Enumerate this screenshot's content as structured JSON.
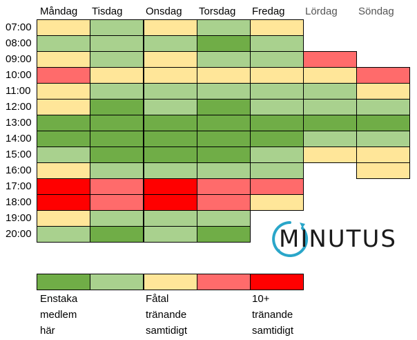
{
  "colors": {
    "c1": "#70ad47",
    "c2": "#a9d18e",
    "c3": "#ffe699",
    "c4": "#ff6b6b",
    "c5": "#ff0000",
    "logo_accent": "#2aa6c9"
  },
  "days": [
    "Måndag",
    "Tisdag",
    "Onsdag",
    "Torsdag",
    "Fredag",
    "Lördag",
    "Söndag"
  ],
  "hours": [
    "07:00",
    "08:00",
    "09:00",
    "10:00",
    "11:00",
    "12:00",
    "13:00",
    "14:00",
    "15:00",
    "16:00",
    "17:00",
    "18:00",
    "19:00",
    "20:00"
  ],
  "grid": [
    [
      3,
      2,
      3,
      2,
      3,
      0,
      0
    ],
    [
      2,
      2,
      2,
      1,
      2,
      0,
      0
    ],
    [
      3,
      2,
      3,
      2,
      2,
      4,
      0
    ],
    [
      4,
      3,
      3,
      3,
      3,
      3,
      4
    ],
    [
      3,
      2,
      2,
      2,
      2,
      2,
      3
    ],
    [
      3,
      1,
      2,
      1,
      2,
      2,
      2
    ],
    [
      1,
      1,
      1,
      1,
      1,
      1,
      1
    ],
    [
      1,
      1,
      1,
      1,
      1,
      2,
      2
    ],
    [
      2,
      1,
      1,
      1,
      2,
      3,
      3
    ],
    [
      3,
      2,
      2,
      2,
      2,
      0,
      3
    ],
    [
      5,
      4,
      5,
      4,
      4,
      0,
      0
    ],
    [
      5,
      4,
      5,
      4,
      3,
      0,
      0
    ],
    [
      3,
      2,
      2,
      2,
      0,
      0,
      0
    ],
    [
      2,
      1,
      2,
      1,
      0,
      0,
      0
    ]
  ],
  "legend": {
    "levels": [
      1,
      2,
      3,
      4,
      5
    ],
    "labels": [
      {
        "lines": [
          "Enstaka",
          "medlem",
          "här"
        ]
      },
      {
        "lines": [
          "Fåtal",
          "tränande",
          "samtidigt"
        ]
      },
      {
        "lines": [
          "10+",
          "tränande",
          "samtidigt"
        ]
      }
    ]
  },
  "logo": {
    "text": "MINUTUS"
  }
}
